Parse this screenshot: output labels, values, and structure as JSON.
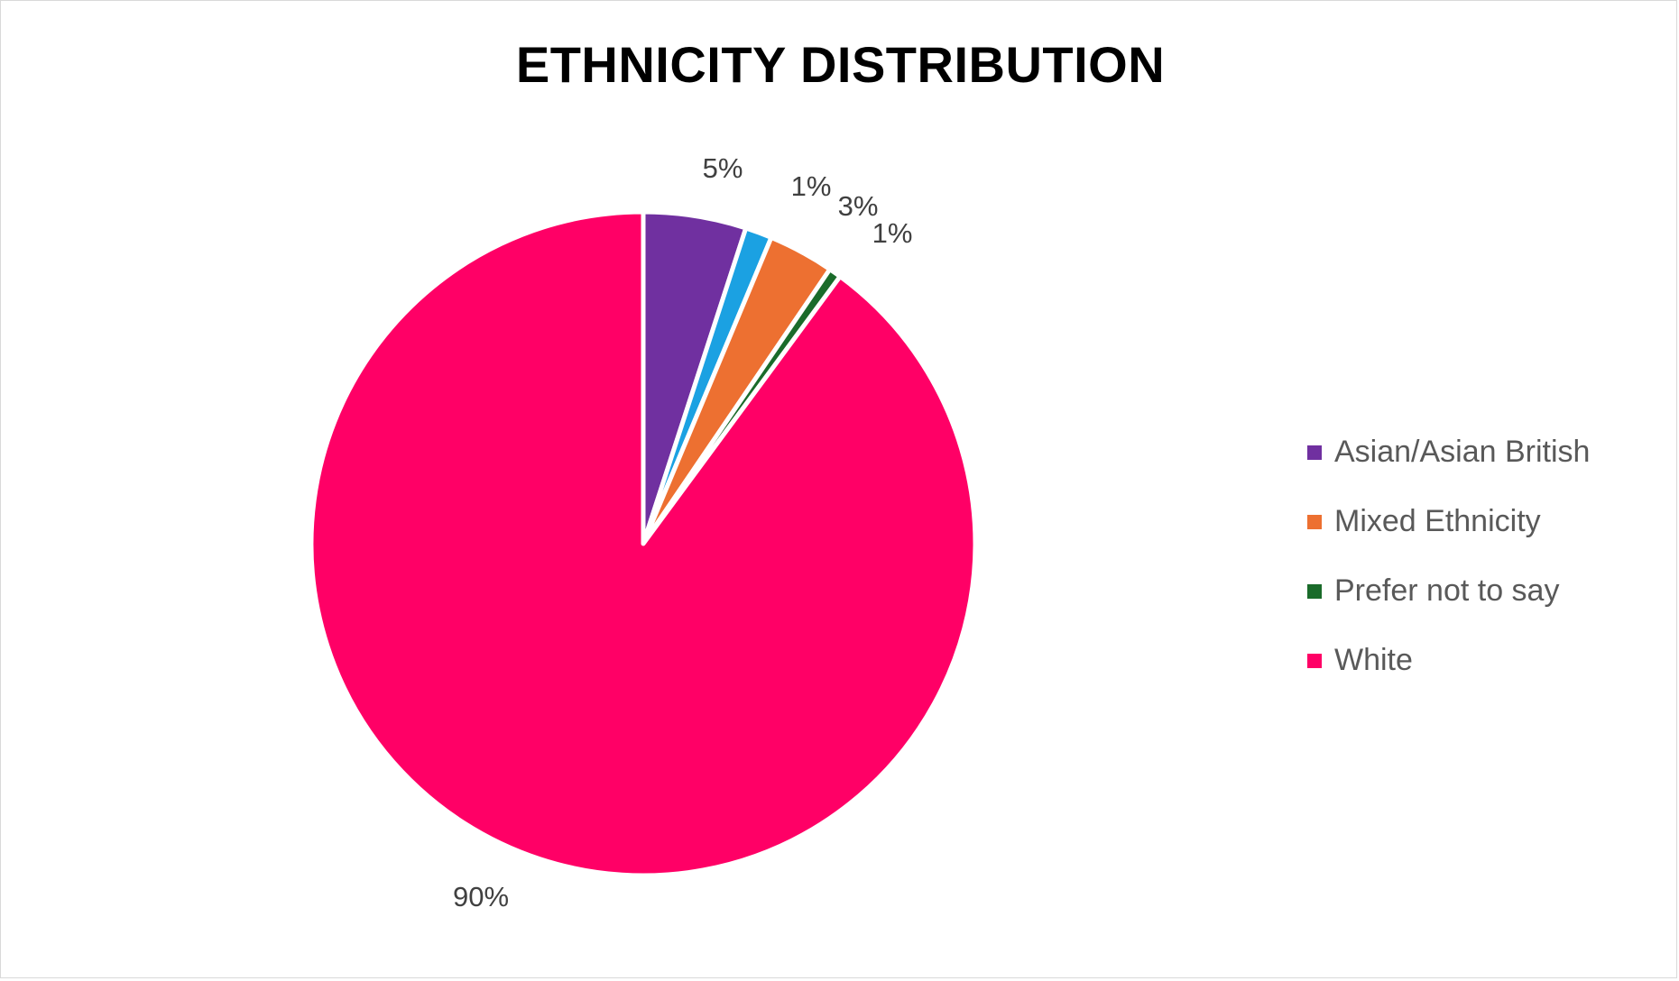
{
  "chart_data": {
    "type": "pie",
    "title": "ETHNICITY DISTRIBUTION",
    "slices": [
      {
        "name": "Asian/Asian British",
        "value": 5,
        "label": "5%",
        "color": "#7030a0",
        "in_legend": true
      },
      {
        "name": "",
        "value": 1.3,
        "label": "1%",
        "color": "#1ba1e2",
        "in_legend": false
      },
      {
        "name": "Mixed Ethnicity",
        "value": 3.2,
        "label": "3%",
        "color": "#ed7031",
        "in_legend": true
      },
      {
        "name": "Prefer not to say",
        "value": 0.6,
        "label": "1%",
        "color": "#1a6b2a",
        "in_legend": true
      },
      {
        "name": "White",
        "value": 89.9,
        "label": "90%",
        "color": "#ff0066",
        "in_legend": true
      }
    ],
    "legend": {
      "placement": "right",
      "items": [
        {
          "label": "Asian/Asian British",
          "color": "#7030a0"
        },
        {
          "label": "Mixed Ethnicity",
          "color": "#ed7031"
        },
        {
          "label": "Prefer not to say",
          "color": "#1a6b2a"
        },
        {
          "label": "White",
          "color": "#ff0066"
        }
      ]
    }
  }
}
